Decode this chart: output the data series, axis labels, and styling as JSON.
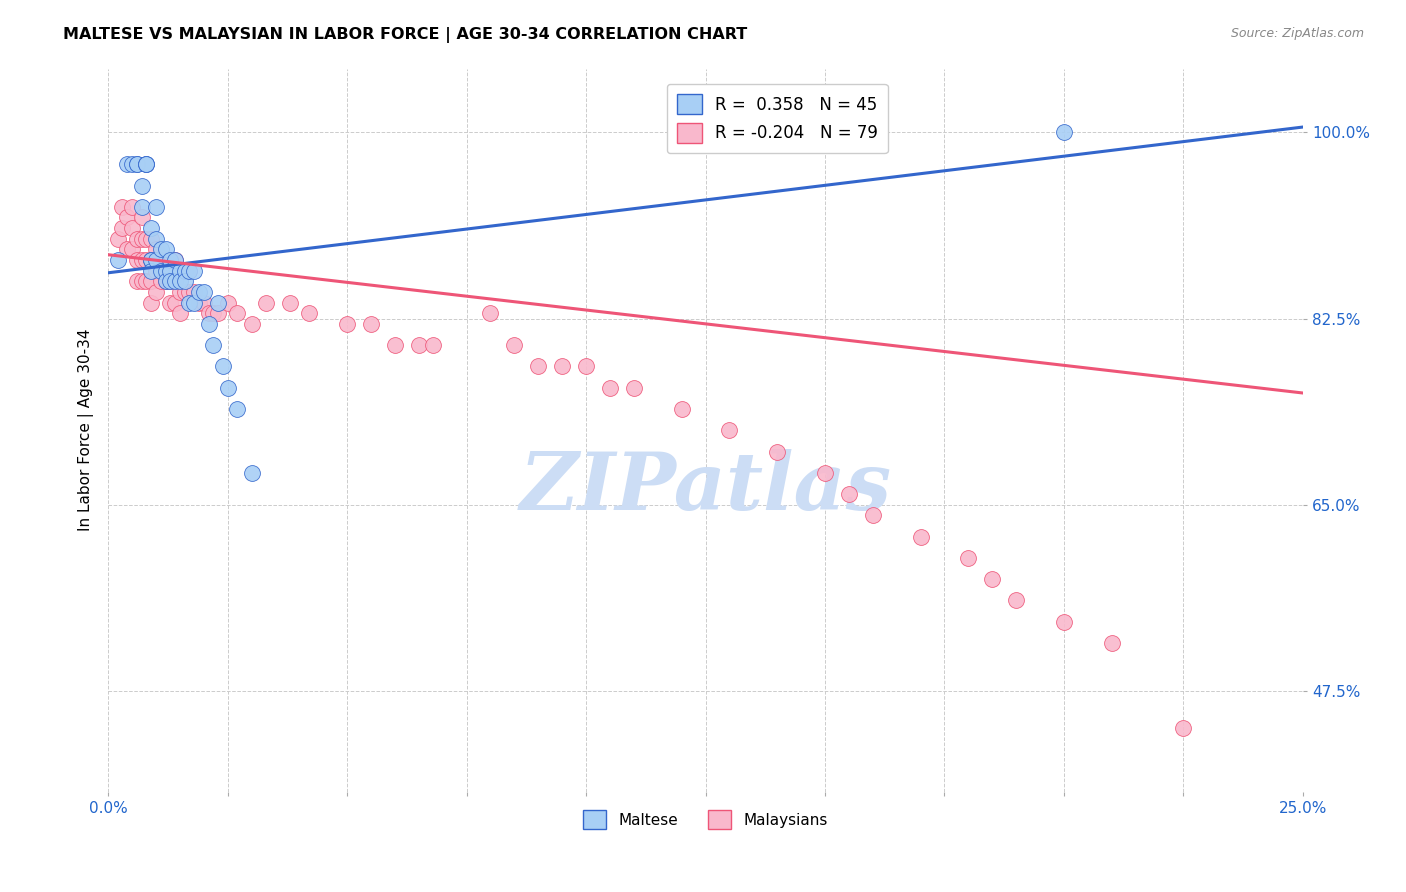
{
  "title": "MALTESE VS MALAYSIAN IN LABOR FORCE | AGE 30-34 CORRELATION CHART",
  "source": "Source: ZipAtlas.com",
  "ylabel": "In Labor Force | Age 30-34",
  "xlim": [
    0.0,
    0.25
  ],
  "ylim": [
    0.38,
    1.06
  ],
  "yticks": [
    0.475,
    0.65,
    0.825,
    1.0
  ],
  "yticklabels": [
    "47.5%",
    "65.0%",
    "82.5%",
    "100.0%"
  ],
  "r_maltese": 0.358,
  "n_maltese": 45,
  "r_malaysian": -0.204,
  "n_malaysian": 79,
  "maltese_color": "#a8cff5",
  "malaysian_color": "#f9b8cc",
  "line_maltese_color": "#3366cc",
  "line_malaysian_color": "#ee5577",
  "watermark_text": "ZIPatlas",
  "watermark_color": "#ccddf5",
  "legend_label_maltese": "Maltese",
  "legend_label_malaysian": "Malaysians",
  "maltese_line_x0": 0.0,
  "maltese_line_y0": 0.868,
  "maltese_line_x1": 0.25,
  "maltese_line_y1": 1.005,
  "malaysian_line_x0": 0.0,
  "malaysian_line_y0": 0.885,
  "malaysian_line_x1": 0.25,
  "malaysian_line_y1": 0.755,
  "maltese_x": [
    0.002,
    0.004,
    0.005,
    0.006,
    0.006,
    0.007,
    0.007,
    0.008,
    0.008,
    0.008,
    0.009,
    0.009,
    0.009,
    0.009,
    0.01,
    0.01,
    0.01,
    0.011,
    0.011,
    0.012,
    0.012,
    0.012,
    0.013,
    0.013,
    0.013,
    0.014,
    0.014,
    0.015,
    0.015,
    0.016,
    0.016,
    0.017,
    0.017,
    0.018,
    0.018,
    0.019,
    0.02,
    0.021,
    0.022,
    0.023,
    0.024,
    0.025,
    0.027,
    0.03,
    0.2
  ],
  "maltese_y": [
    0.88,
    0.97,
    0.97,
    0.97,
    0.97,
    0.95,
    0.93,
    0.97,
    0.97,
    0.97,
    0.91,
    0.88,
    0.88,
    0.87,
    0.93,
    0.9,
    0.88,
    0.89,
    0.87,
    0.89,
    0.87,
    0.86,
    0.88,
    0.87,
    0.86,
    0.88,
    0.86,
    0.87,
    0.86,
    0.87,
    0.86,
    0.87,
    0.84,
    0.87,
    0.84,
    0.85,
    0.85,
    0.82,
    0.8,
    0.84,
    0.78,
    0.76,
    0.74,
    0.68,
    1.0
  ],
  "malaysian_x": [
    0.002,
    0.003,
    0.003,
    0.004,
    0.004,
    0.005,
    0.005,
    0.005,
    0.006,
    0.006,
    0.006,
    0.007,
    0.007,
    0.007,
    0.007,
    0.008,
    0.008,
    0.008,
    0.009,
    0.009,
    0.009,
    0.009,
    0.01,
    0.01,
    0.01,
    0.011,
    0.011,
    0.012,
    0.012,
    0.013,
    0.013,
    0.013,
    0.014,
    0.014,
    0.014,
    0.015,
    0.015,
    0.015,
    0.016,
    0.016,
    0.017,
    0.017,
    0.018,
    0.019,
    0.02,
    0.021,
    0.022,
    0.023,
    0.025,
    0.027,
    0.03,
    0.033,
    0.038,
    0.042,
    0.05,
    0.055,
    0.06,
    0.065,
    0.068,
    0.08,
    0.085,
    0.09,
    0.095,
    0.1,
    0.105,
    0.11,
    0.12,
    0.13,
    0.14,
    0.15,
    0.155,
    0.16,
    0.17,
    0.18,
    0.185,
    0.19,
    0.2,
    0.21,
    0.225
  ],
  "malaysian_y": [
    0.9,
    0.93,
    0.91,
    0.92,
    0.89,
    0.93,
    0.91,
    0.89,
    0.9,
    0.88,
    0.86,
    0.92,
    0.9,
    0.88,
    0.86,
    0.9,
    0.88,
    0.86,
    0.9,
    0.88,
    0.86,
    0.84,
    0.89,
    0.87,
    0.85,
    0.88,
    0.86,
    0.88,
    0.86,
    0.88,
    0.86,
    0.84,
    0.88,
    0.86,
    0.84,
    0.87,
    0.85,
    0.83,
    0.87,
    0.85,
    0.87,
    0.85,
    0.85,
    0.84,
    0.84,
    0.83,
    0.83,
    0.83,
    0.84,
    0.83,
    0.82,
    0.84,
    0.84,
    0.83,
    0.82,
    0.82,
    0.8,
    0.8,
    0.8,
    0.83,
    0.8,
    0.78,
    0.78,
    0.78,
    0.76,
    0.76,
    0.74,
    0.72,
    0.7,
    0.68,
    0.66,
    0.64,
    0.62,
    0.6,
    0.58,
    0.56,
    0.54,
    0.52,
    0.44
  ]
}
